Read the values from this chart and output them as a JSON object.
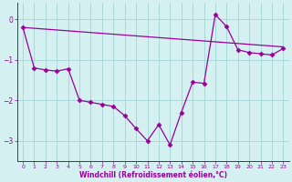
{
  "line1_x": [
    0,
    1,
    2,
    3,
    4,
    5,
    6,
    7,
    8,
    9,
    10,
    11,
    12,
    13,
    14,
    15,
    16,
    17,
    18,
    19,
    20,
    21,
    22,
    23
  ],
  "line1_y": [
    -0.2,
    -1.2,
    -1.25,
    -1.28,
    -1.22,
    -2.0,
    -2.05,
    -2.1,
    -2.15,
    -2.38,
    -2.7,
    -3.0,
    -2.6,
    -3.1,
    -2.3,
    -1.55,
    -1.58,
    0.12,
    -0.18,
    -0.75,
    -0.82,
    -0.85,
    -0.88,
    -0.72
  ],
  "line2_x": [
    0,
    23
  ],
  "line2_y": [
    -0.2,
    -0.68
  ],
  "line_color": "#990099",
  "bg_color": "#d4f0f0",
  "grid_color": "#a8d8d8",
  "xlabel": "Windchill (Refroidissement éolien,°C)",
  "ylim": [
    -3.5,
    0.4
  ],
  "xlim": [
    -0.5,
    23.5
  ],
  "yticks": [
    0,
    -1,
    -2,
    -3
  ],
  "xticks": [
    0,
    1,
    2,
    3,
    4,
    5,
    6,
    7,
    8,
    9,
    10,
    11,
    12,
    13,
    14,
    15,
    16,
    17,
    18,
    19,
    20,
    21,
    22,
    23
  ],
  "marker": "D",
  "markersize": 2.5
}
